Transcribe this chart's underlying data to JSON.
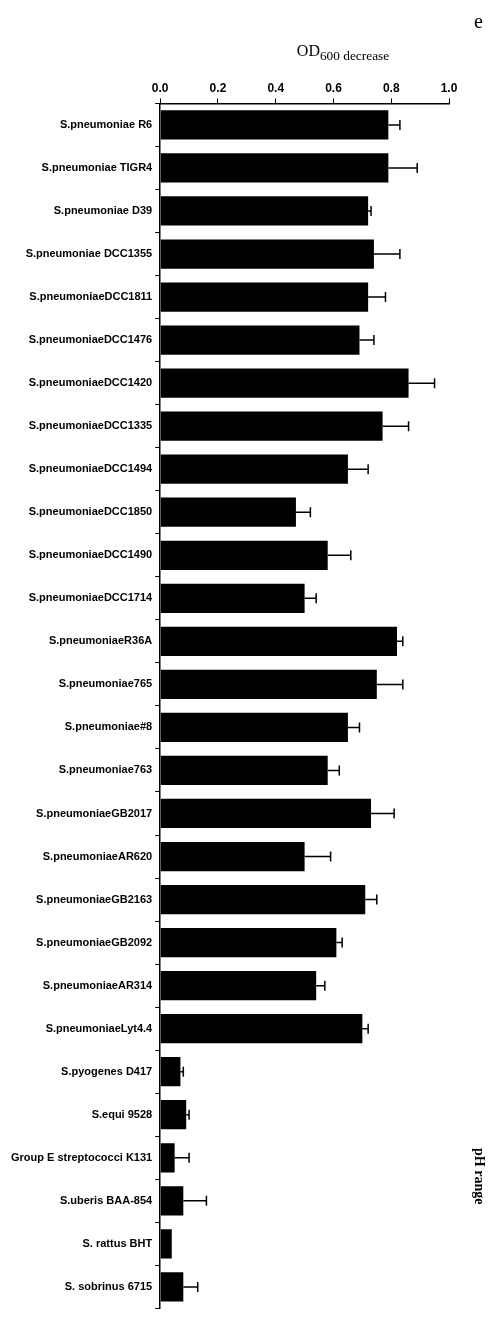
{
  "chart_data": {
    "type": "bar",
    "orientation": "horizontal",
    "xlabel": "OD$_{600 decrease}$",
    "annotations": [
      "e",
      "pH range"
    ],
    "categories": [
      "S.pneumoniae R6",
      "S.pneumoniae TIGR4",
      "S.pneumoniae D39",
      "S.pneumoniae DCC1355",
      "S.pneumoniaeDCC1811",
      "S.pneumoniaeDCC1476",
      "S.pneumoniaeDCC1420",
      "S.pneumoniaeDCC1335",
      "S.pneumoniaeDCC1494",
      "S.pneumoniaeDCC1850",
      "S.pneumoniaeDCC1490",
      "S.pneumoniaeDCC1714",
      "S.pneumoniaeR36A",
      "S.pneumoniae765",
      "S.pneumoniae#8",
      "S.pneumoniae763",
      "S.pneumoniaeGB2017",
      "S.pneumoniaeAR620",
      "S.pneumoniaeGB2163",
      "S.pneumoniaeGB2092",
      "S.pneumoniaeAR314",
      "S.pneumoniaeLyt4.4",
      "S.pyogenes D417",
      "S.equi 9528",
      "Group E streptococci K131",
      "S.uberis BAA-854",
      "S. rattus BHT",
      "S. sobrinus 6715"
    ],
    "values": [
      0.79,
      0.79,
      0.72,
      0.74,
      0.72,
      0.69,
      0.86,
      0.77,
      0.65,
      0.47,
      0.58,
      0.5,
      0.82,
      0.75,
      0.65,
      0.58,
      0.73,
      0.5,
      0.71,
      0.61,
      0.54,
      0.7,
      0.07,
      0.09,
      0.05,
      0.08,
      0.04,
      0.08
    ],
    "errors": [
      [
        0.79,
        0.83
      ],
      [
        0.79,
        0.89
      ],
      [
        0.72,
        0.73
      ],
      [
        0.74,
        0.83
      ],
      [
        0.72,
        0.78
      ],
      [
        0.69,
        0.74
      ],
      [
        0.86,
        0.95
      ],
      [
        0.77,
        0.86
      ],
      [
        0.65,
        0.72
      ],
      [
        0.47,
        0.52
      ],
      [
        0.58,
        0.66
      ],
      [
        0.5,
        0.54
      ],
      [
        0.82,
        0.84
      ],
      [
        0.75,
        0.84
      ],
      [
        0.65,
        0.69
      ],
      [
        0.58,
        0.62
      ],
      [
        0.73,
        0.81
      ],
      [
        0.5,
        0.59
      ],
      [
        0.71,
        0.75
      ],
      [
        0.61,
        0.63
      ],
      [
        0.54,
        0.57
      ],
      [
        0.7,
        0.72
      ],
      [
        0.07,
        0.08
      ],
      [
        0.09,
        0.1
      ],
      [
        0.05,
        0.1
      ],
      [
        0.08,
        0.16
      ],
      null,
      [
        0.08,
        0.13
      ]
    ],
    "color": "#000000",
    "xlim": [
      0,
      1
    ],
    "xticks": [
      {
        "value": 0,
        "label": "0.0"
      },
      {
        "value": 0.2,
        "label": "0.2"
      },
      {
        "value": 0.4,
        "label": "0.4"
      },
      {
        "value": 0.6,
        "label": "0.6"
      },
      {
        "value": 0.8,
        "label": "0.8"
      },
      {
        "value": 1,
        "label": "1.0"
      }
    ],
    "grid": false,
    "legend": false
  }
}
